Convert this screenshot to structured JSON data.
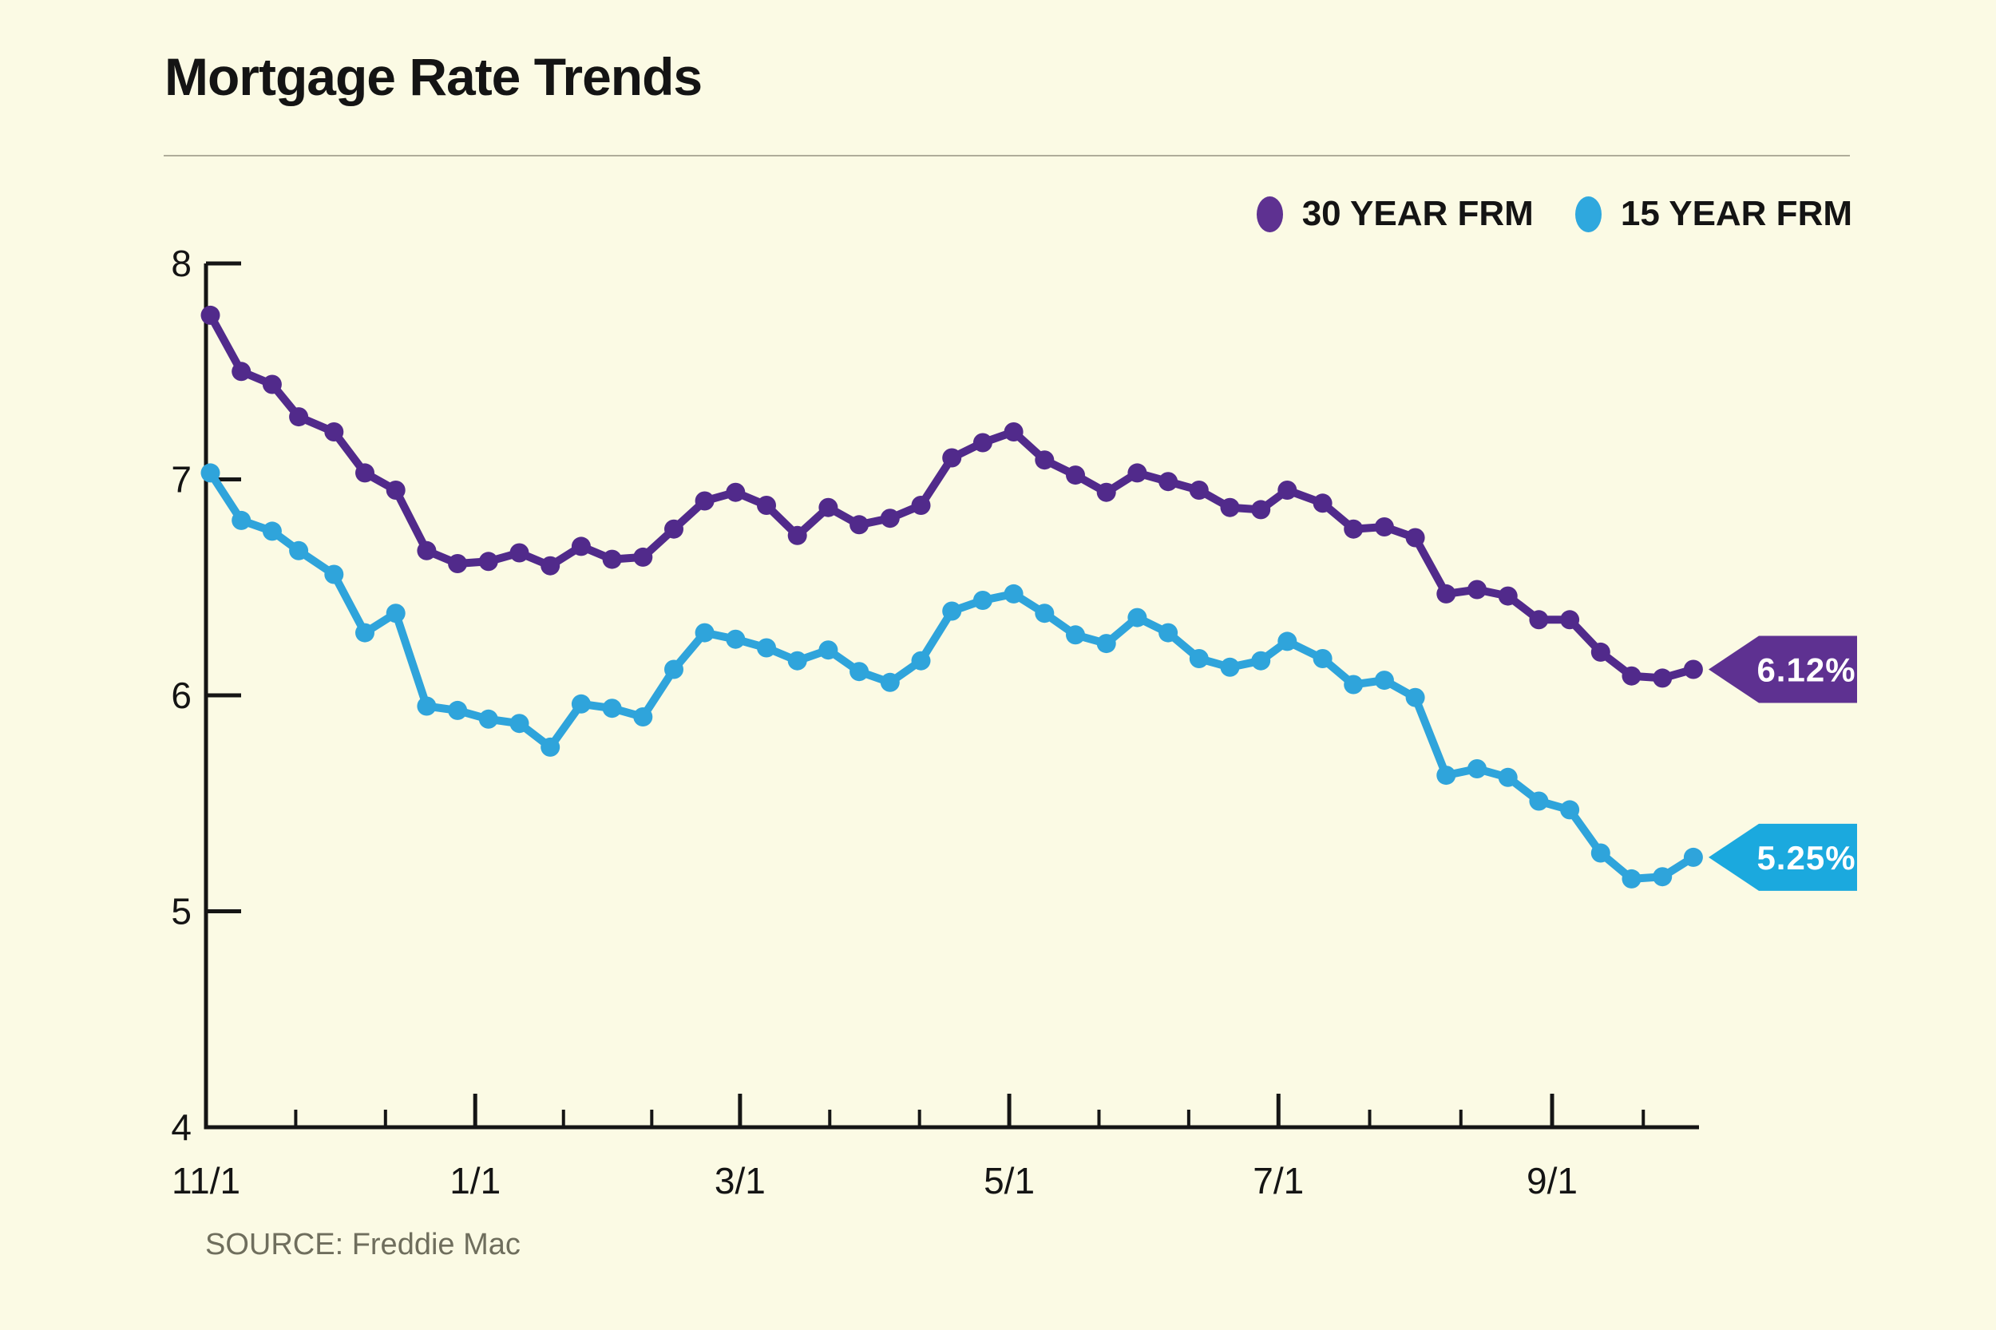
{
  "header": {
    "title": "Mortgage Rate Trends"
  },
  "legend": {
    "items": [
      {
        "label": "30 YEAR FRM",
        "color": "#5E3191"
      },
      {
        "label": "15 YEAR FRM",
        "color": "#2FA8DE"
      }
    ]
  },
  "footer": {
    "source": "SOURCE: Freddie Mac"
  },
  "colors": {
    "background": "#FBFAE4",
    "axis": "#151515",
    "text": "#141414",
    "title_rule": "#AFAC9A",
    "source_text": "#6F6E5D",
    "badge_text": "#FFFFFF"
  },
  "chart_data": {
    "type": "line",
    "title": "Mortgage Rate Trends",
    "xlabel": "",
    "ylabel": "",
    "ylim": [
      4,
      8
    ],
    "y_ticks": [
      4,
      5,
      6,
      7,
      8
    ],
    "grid": false,
    "legend_position": "top-right",
    "x_tick_labels": [
      "11/1",
      "1/1",
      "3/1",
      "5/1",
      "7/1",
      "9/1"
    ],
    "x_tick_day_offsets": [
      0,
      61,
      121,
      182,
      243,
      305
    ],
    "x_dates": [
      "11/2",
      "11/9",
      "11/16",
      "11/22",
      "11/30",
      "12/7",
      "12/14",
      "12/21",
      "12/28",
      "1/4",
      "1/11",
      "1/18",
      "1/25",
      "2/1",
      "2/8",
      "2/15",
      "2/22",
      "2/29",
      "3/7",
      "3/14",
      "3/21",
      "3/28",
      "4/4",
      "4/11",
      "4/18",
      "4/25",
      "5/2",
      "5/9",
      "5/16",
      "5/23",
      "5/30",
      "6/6",
      "6/13",
      "6/20",
      "6/27",
      "7/3",
      "7/11",
      "7/18",
      "7/25",
      "8/1",
      "8/8",
      "8/15",
      "8/22",
      "8/29",
      "9/5",
      "9/12",
      "9/19",
      "9/26",
      "10/3"
    ],
    "x_day_offsets": [
      1,
      8,
      15,
      21,
      29,
      36,
      43,
      50,
      57,
      64,
      71,
      78,
      85,
      92,
      99,
      106,
      113,
      120,
      127,
      134,
      141,
      148,
      155,
      162,
      169,
      176,
      183,
      190,
      197,
      204,
      211,
      218,
      225,
      232,
      239,
      245,
      253,
      260,
      267,
      274,
      281,
      288,
      295,
      302,
      309,
      316,
      323,
      330,
      337
    ],
    "series": [
      {
        "name": "30 YEAR FRM",
        "color": "#512A8B",
        "badge_color": "#5E3191",
        "end_label": "6.12%",
        "values": [
          7.76,
          7.5,
          7.44,
          7.29,
          7.22,
          7.03,
          6.95,
          6.67,
          6.61,
          6.62,
          6.66,
          6.6,
          6.69,
          6.63,
          6.64,
          6.77,
          6.9,
          6.94,
          6.88,
          6.74,
          6.87,
          6.79,
          6.82,
          6.88,
          7.1,
          7.17,
          7.22,
          7.09,
          7.02,
          6.94,
          7.03,
          6.99,
          6.95,
          6.87,
          6.86,
          6.95,
          6.89,
          6.77,
          6.78,
          6.73,
          6.47,
          6.49,
          6.46,
          6.35,
          6.35,
          6.2,
          6.09,
          6.08,
          6.12
        ]
      },
      {
        "name": "15 YEAR FRM",
        "color": "#2FA4DB",
        "badge_color": "#1BA9DE",
        "end_label": "5.25%",
        "values": [
          7.03,
          6.81,
          6.76,
          6.67,
          6.56,
          6.29,
          6.38,
          5.95,
          5.93,
          5.89,
          5.87,
          5.76,
          5.96,
          5.94,
          5.9,
          6.12,
          6.29,
          6.26,
          6.22,
          6.16,
          6.21,
          6.11,
          6.06,
          6.16,
          6.39,
          6.44,
          6.47,
          6.38,
          6.28,
          6.24,
          6.36,
          6.29,
          6.17,
          6.13,
          6.16,
          6.25,
          6.17,
          6.05,
          6.07,
          5.99,
          5.63,
          5.66,
          5.62,
          5.51,
          5.47,
          5.27,
          5.15,
          5.16,
          5.25
        ]
      }
    ],
    "source": "SOURCE: Freddie Mac"
  }
}
